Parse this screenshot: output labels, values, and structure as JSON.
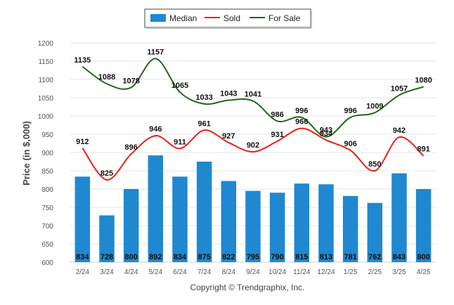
{
  "chart_data": {
    "type": "bar",
    "title": "",
    "xlabel": "",
    "ylabel": "Price (in $,000)",
    "ylim": [
      600,
      1200
    ],
    "ytick_step": 50,
    "grid": true,
    "legend_position": "top-center",
    "categories": [
      "2/24",
      "3/24",
      "4/24",
      "5/24",
      "6/24",
      "7/24",
      "8/24",
      "9/24",
      "10/24",
      "11/24",
      "12/24",
      "1/25",
      "2/25",
      "3/25",
      "4/25"
    ],
    "series": [
      {
        "name": "Median",
        "type": "bar",
        "color": "#1f88d0",
        "values": [
          834,
          728,
          800,
          892,
          834,
          875,
          822,
          795,
          790,
          815,
          813,
          781,
          762,
          843,
          800
        ]
      },
      {
        "name": "Sold",
        "type": "line",
        "color": "#e8201a",
        "values": [
          912,
          825,
          896,
          946,
          911,
          961,
          927,
          902,
          931,
          966,
          934,
          906,
          850,
          942,
          891
        ]
      },
      {
        "name": "For Sale",
        "type": "line",
        "color": "#1e6b1a",
        "values": [
          1135,
          1088,
          1078,
          1157,
          1065,
          1033,
          1043,
          1041,
          986,
          996,
          943,
          996,
          1009,
          1057,
          1080
        ]
      }
    ]
  },
  "legend": {
    "median_label": "Median",
    "sold_label": "Sold",
    "forsale_label": "For Sale"
  },
  "footer": {
    "copyright": "Copyright © Trendgraphix, Inc."
  }
}
